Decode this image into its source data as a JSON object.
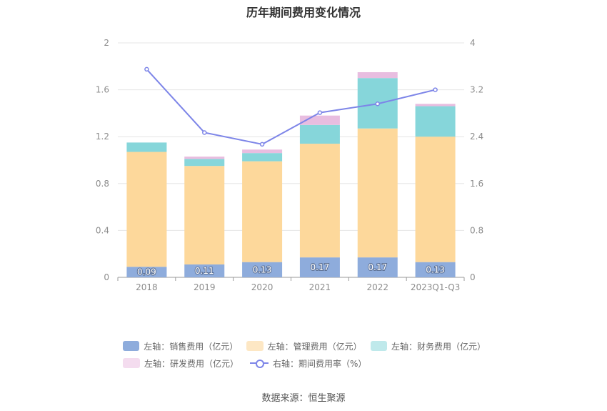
{
  "chart_data": {
    "type": "bar",
    "title": "历年期间费用变化情况",
    "categories": [
      "2018",
      "2019",
      "2020",
      "2021",
      "2022",
      "2023Q1-Q3"
    ],
    "stacked": true,
    "series": [
      {
        "name": "左轴：销售费用（亿元）",
        "axis": "left",
        "color": "#8eacdc",
        "values": [
          0.09,
          0.11,
          0.13,
          0.17,
          0.17,
          0.13
        ],
        "labels": [
          "0.09",
          "0.11",
          "0.13",
          "0.17",
          "0.17",
          "0.13"
        ]
      },
      {
        "name": "左轴：管理费用（亿元）",
        "axis": "left",
        "color": "#fdd89b",
        "values": [
          0.98,
          0.84,
          0.86,
          0.97,
          1.1,
          1.07
        ]
      },
      {
        "name": "左轴：财务费用（亿元）",
        "axis": "left",
        "color": "#86d6da",
        "values": [
          0.08,
          0.06,
          0.07,
          0.16,
          0.43,
          0.26
        ]
      },
      {
        "name": "左轴：研发费用（亿元）",
        "axis": "left",
        "color": "#e8bde0",
        "values": [
          0.0,
          0.02,
          0.03,
          0.08,
          0.05,
          0.02
        ]
      }
    ],
    "line_series": {
      "name": "右轴：期间费用率（%）",
      "axis": "right",
      "color": "#7d85e8",
      "values": [
        3.55,
        2.47,
        2.27,
        2.81,
        2.96,
        3.2
      ]
    },
    "y_left": {
      "min": 0,
      "max": 2,
      "ticks": [
        "0",
        "0.4",
        "0.8",
        "1.2",
        "1.6",
        "2"
      ],
      "tick_values": [
        0,
        0.4,
        0.8,
        1.2,
        1.6,
        2
      ]
    },
    "y_right": {
      "min": 0,
      "max": 4,
      "ticks": [
        "0",
        "0.8",
        "1.6",
        "2.4",
        "3.2",
        "4"
      ],
      "tick_values": [
        0,
        0.8,
        1.6,
        2.4,
        3.2,
        4
      ]
    },
    "legend_position": "bottom"
  },
  "source": "数据来源：恒生聚源"
}
